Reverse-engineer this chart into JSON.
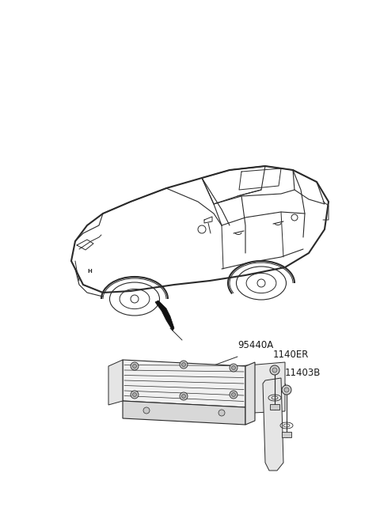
{
  "background_color": "#ffffff",
  "line_color": "#2a2a2a",
  "label_color": "#1a1a1a",
  "fig_width": 4.8,
  "fig_height": 6.55,
  "dpi": 100,
  "label_95440A": "95440A",
  "label_1140ER": "1140ER",
  "label_11403B": "11403B",
  "label_fontsize": 8.5
}
